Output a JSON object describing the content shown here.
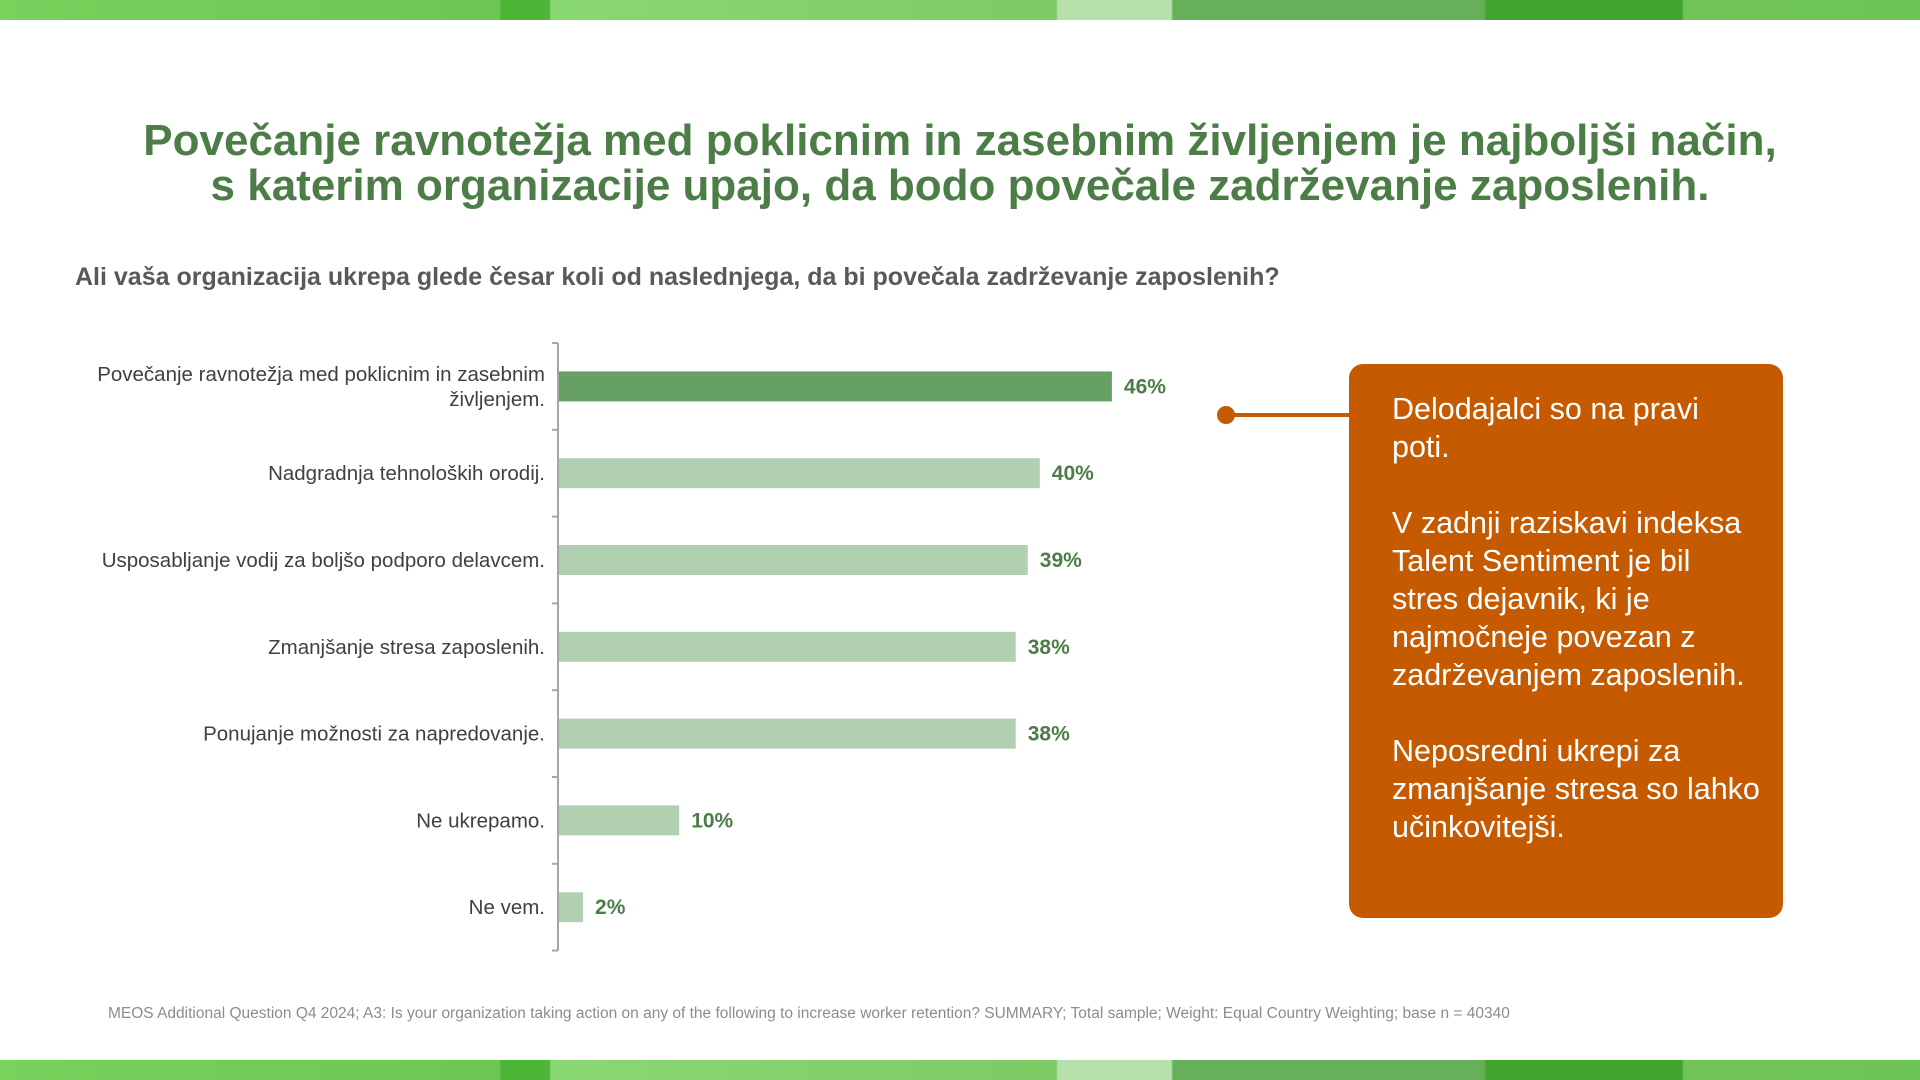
{
  "title": {
    "line1": "Povečanje ravnotežja med poklicnim in zasebnim življenjem je najboljši način,",
    "line2": "s katerim organizacije upajo, da bodo povečale zadrževanje zaposlenih."
  },
  "subtitle": "Ali vaša organizacija ukrepa glede česar koli od naslednjega, da bi povečala zadrževanje zaposlenih?",
  "chart_data": {
    "type": "bar",
    "orientation": "horizontal",
    "categories": [
      [
        "Povečanje ravnotežja med poklicnim in zasebnim",
        "življenjem."
      ],
      [
        "Nadgradnja tehnoloških orodij."
      ],
      [
        "Usposabljanje vodij za boljšo podporo delavcem."
      ],
      [
        "Zmanjšanje stresa zaposlenih."
      ],
      [
        "Ponujanje možnosti za napredovanje."
      ],
      [
        "Ne ukrepamo."
      ],
      [
        "Ne vem."
      ]
    ],
    "values": [
      46,
      40,
      39,
      38,
      38,
      10,
      2
    ],
    "value_labels": [
      "46%",
      "40%",
      "39%",
      "38%",
      "38%",
      "10%",
      "2%"
    ],
    "unit": "%",
    "colors": {
      "highlight": "#66a063",
      "default": "#b1d0b1",
      "label": "#4c7d47"
    }
  },
  "callout": {
    "paragraphs": [
      "Delodajalci so na pravi poti.",
      "V zadnji raziskavi indeksa Talent Sentiment je bil stres dejavnik, ki je najmočneje povezan z zadrževanjem zaposlenih.",
      "Neposredni ukrepi za zmanjšanje stresa so lahko učinkovitejši."
    ],
    "color": "#c55a00"
  },
  "footnote": "MEOS Additional Question Q4 2024; A3: Is your organization taking action on any of the following to increase worker retention? SUMMARY; Total sample; Weight: Equal Country Weighting; base n = 40340"
}
